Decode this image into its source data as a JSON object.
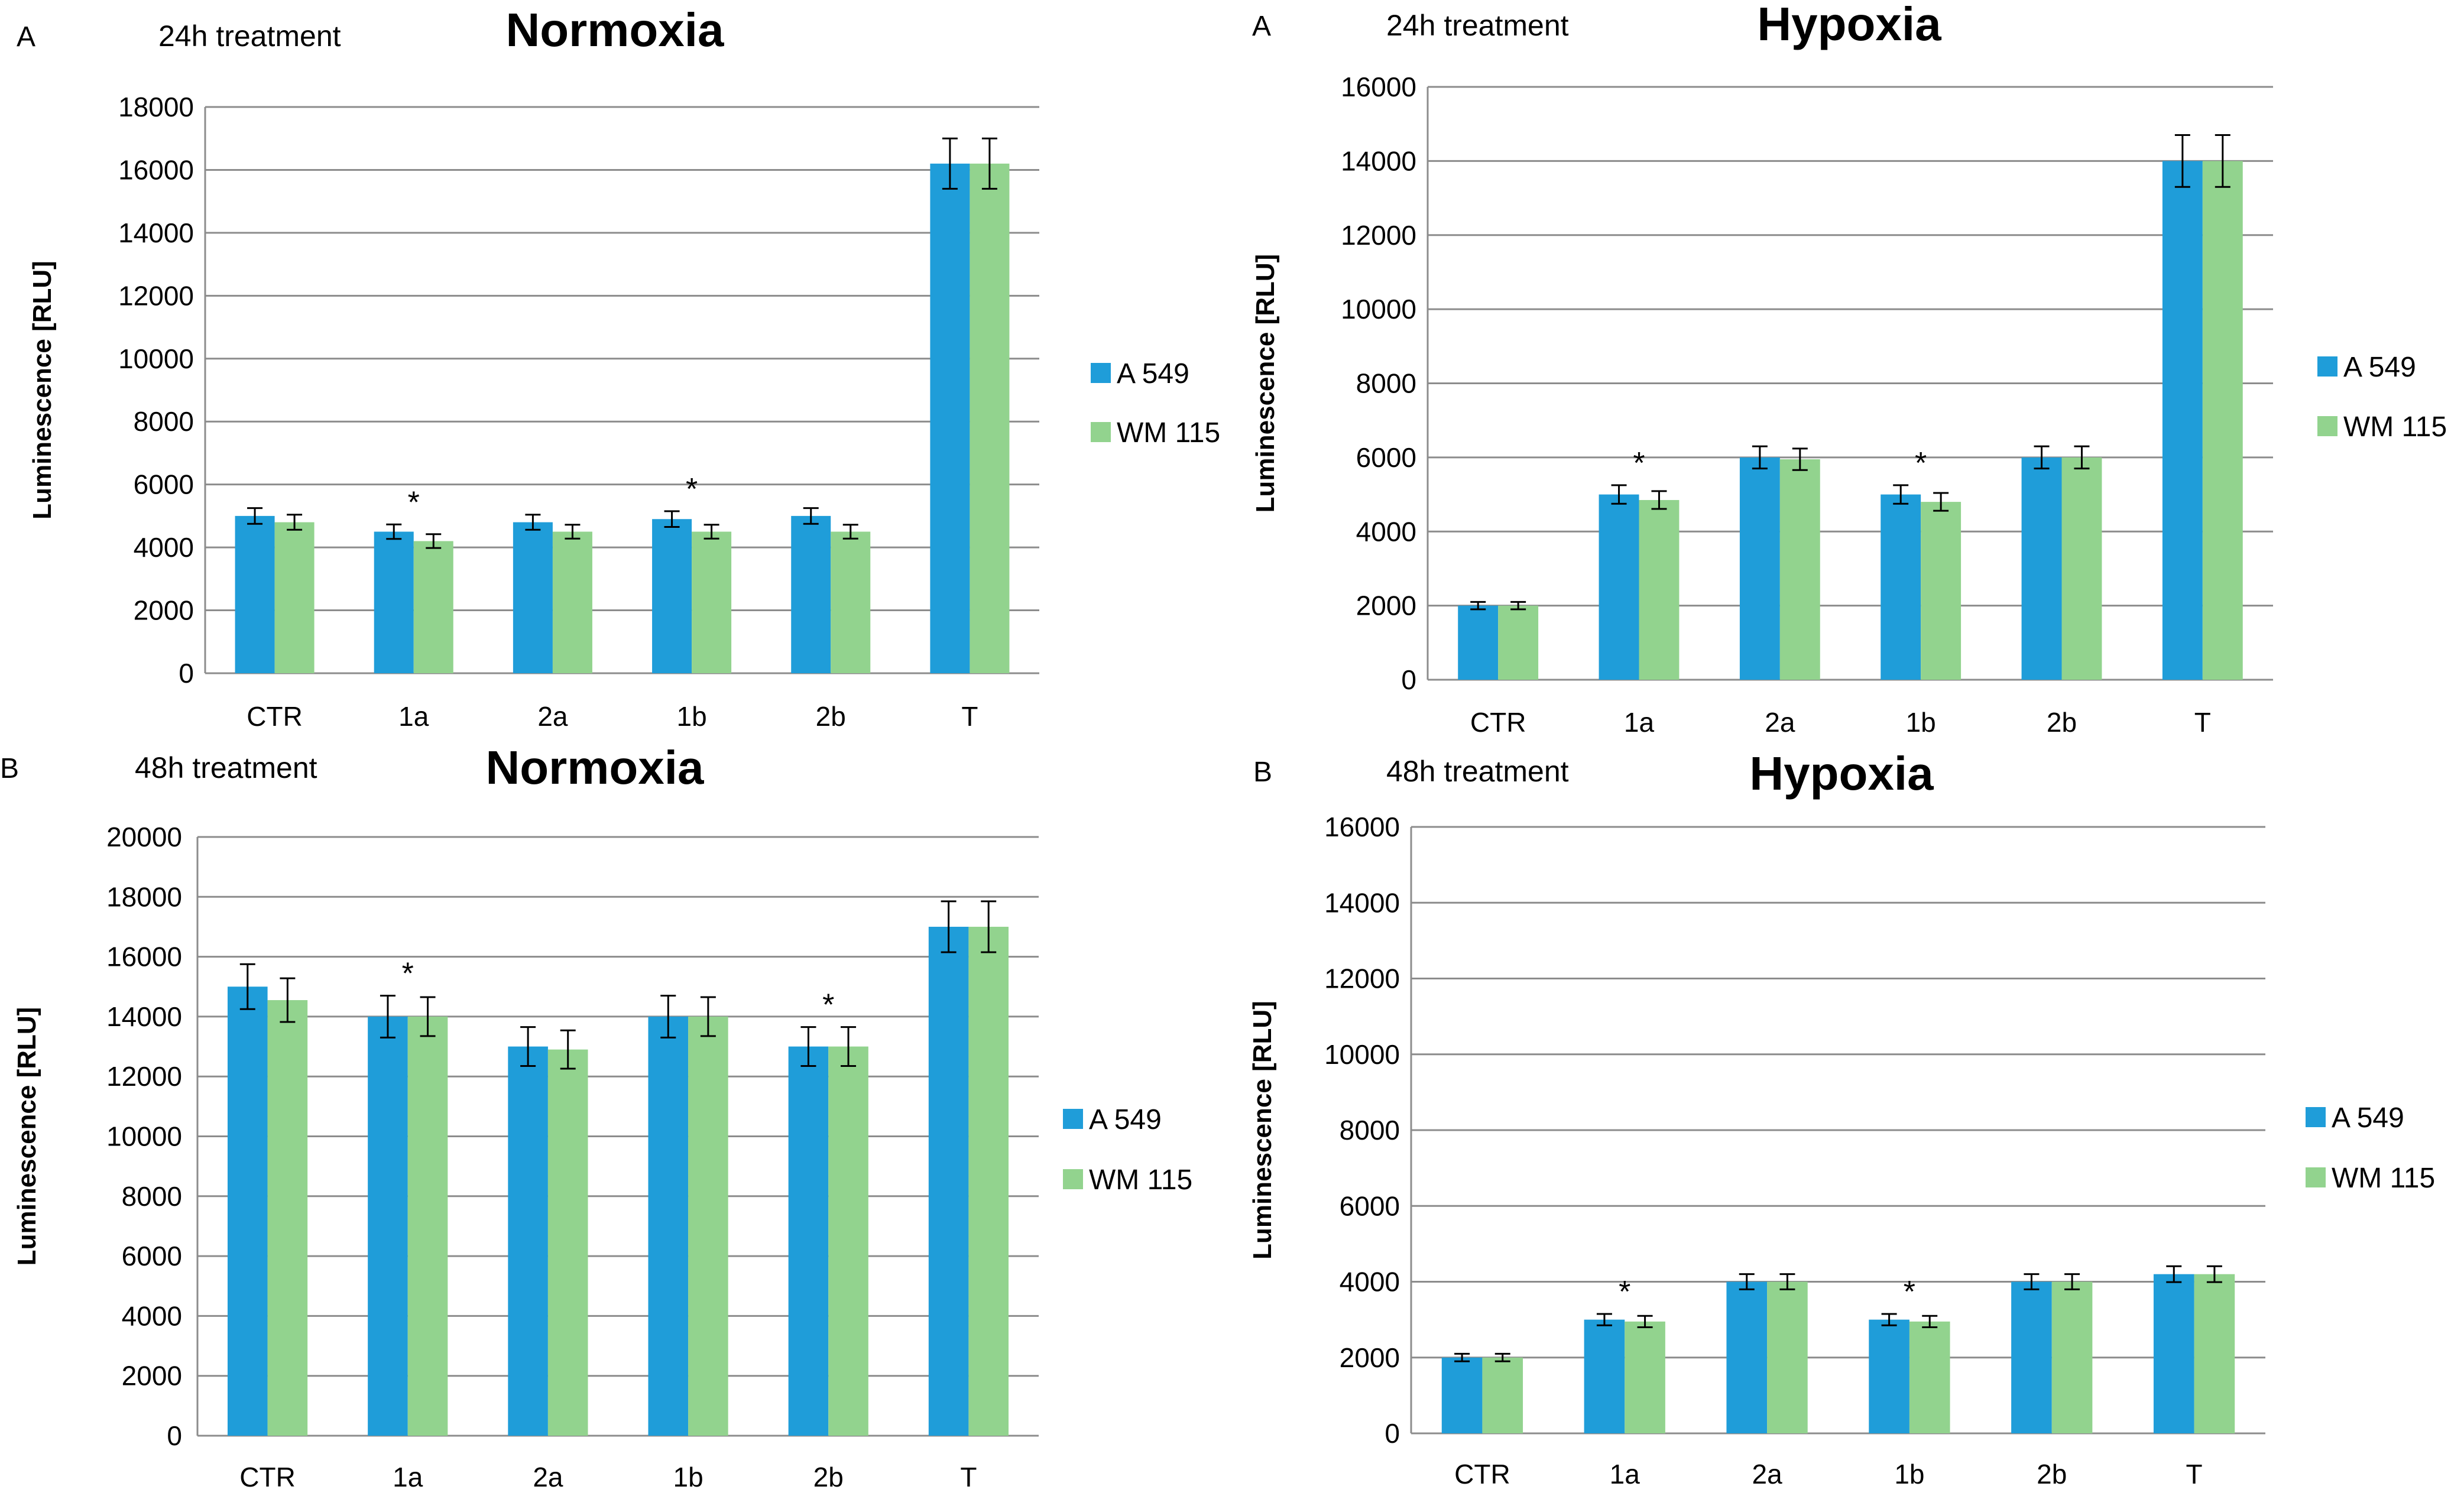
{
  "colors": {
    "a549": "#1f9dd9",
    "wm115": "#92d38e",
    "grid": "#8c8c8c",
    "error": "#000000"
  },
  "legend": [
    "A 549",
    "WM 115"
  ],
  "chart_data": [
    {
      "id": "n24",
      "type": "bar",
      "panel": "A",
      "treatment": "24h treatment",
      "title": "Normoxia",
      "ylabel": "Luminescence [RLU]",
      "ylim": [
        0,
        18000
      ],
      "ytick_step": 2000,
      "ytick_labels": [
        "0",
        "2000",
        "4000",
        "6000",
        "8000",
        "10000",
        "12000",
        "14000",
        "16000",
        "18000"
      ],
      "categories": [
        "CTR",
        "1a",
        "2a",
        "1b",
        "2b",
        "T"
      ],
      "series": [
        {
          "name": "A 549",
          "values": [
            5000,
            4500,
            4800,
            4900,
            5000,
            16200
          ],
          "errors": [
            250,
            230,
            240,
            250,
            250,
            800
          ]
        },
        {
          "name": "WM 115",
          "values": [
            4800,
            4200,
            4500,
            4500,
            4500,
            16200
          ],
          "errors": [
            240,
            220,
            220,
            220,
            220,
            800
          ]
        }
      ],
      "significance": [
        {
          "category": "1a",
          "label": "*"
        },
        {
          "category": "1b",
          "label": "*"
        }
      ]
    },
    {
      "id": "h24",
      "type": "bar",
      "panel": "A",
      "treatment": "24h treatment",
      "title": "Hypoxia",
      "ylabel": "Luminescence [RLU]",
      "ylim": [
        0,
        16000
      ],
      "ytick_step": 2000,
      "ytick_labels": [
        "0",
        "2000",
        "4000",
        "6000",
        "8000",
        "10000",
        "12000",
        "14000",
        "16000"
      ],
      "categories": [
        "CTR",
        "1a",
        "2a",
        "1b",
        "2b",
        "T"
      ],
      "series": [
        {
          "name": "A 549",
          "values": [
            2000,
            5000,
            6000,
            5000,
            6000,
            14000
          ],
          "errors": [
            100,
            250,
            300,
            250,
            300,
            700
          ]
        },
        {
          "name": "WM 115",
          "values": [
            2000,
            4850,
            5950,
            4800,
            6000,
            14000
          ],
          "errors": [
            100,
            240,
            290,
            240,
            300,
            700
          ]
        }
      ],
      "significance": [
        {
          "category": "1a",
          "label": "*"
        },
        {
          "category": "1b",
          "label": "*"
        }
      ]
    },
    {
      "id": "n48",
      "type": "bar",
      "panel": "B",
      "treatment": "48h treatment",
      "title": "Normoxia",
      "ylabel": "Luminescence [RLU]",
      "ylim": [
        0,
        20000
      ],
      "ytick_step": 2000,
      "ytick_labels": [
        "0",
        "2000",
        "4000",
        "6000",
        "8000",
        "10000",
        "12000",
        "14000",
        "16000",
        "18000",
        "20000"
      ],
      "categories": [
        "CTR",
        "1a",
        "2a",
        "1b",
        "2b",
        "T"
      ],
      "series": [
        {
          "name": "A 549",
          "values": [
            15000,
            14000,
            13000,
            14000,
            13000,
            17000
          ],
          "errors": [
            750,
            700,
            650,
            700,
            650,
            850
          ]
        },
        {
          "name": "WM 115",
          "values": [
            14550,
            14000,
            12900,
            14000,
            13000,
            17000
          ],
          "errors": [
            730,
            650,
            640,
            650,
            650,
            850
          ]
        }
      ],
      "significance": [
        {
          "category": "1a",
          "label": "*"
        },
        {
          "category": "2b",
          "label": "*"
        }
      ]
    },
    {
      "id": "h48",
      "type": "bar",
      "panel": "B",
      "treatment": "48h treatment",
      "title": "Hypoxia",
      "ylabel": "Luminescence [RLU]",
      "ylim": [
        0,
        16000
      ],
      "ytick_step": 2000,
      "ytick_labels": [
        "0",
        "2000",
        "4000",
        "6000",
        "8000",
        "10000",
        "12000",
        "14000",
        "16000"
      ],
      "categories": [
        "CTR",
        "1a",
        "2a",
        "1b",
        "2b",
        "T"
      ],
      "series": [
        {
          "name": "A 549",
          "values": [
            2000,
            3000,
            4000,
            3000,
            4000,
            4200
          ],
          "errors": [
            100,
            150,
            200,
            150,
            200,
            210
          ]
        },
        {
          "name": "WM 115",
          "values": [
            2000,
            2950,
            4000,
            2950,
            4000,
            4200
          ],
          "errors": [
            100,
            150,
            200,
            150,
            200,
            210
          ]
        }
      ],
      "significance": [
        {
          "category": "1a",
          "label": "*"
        },
        {
          "category": "1b",
          "label": "*"
        }
      ]
    }
  ]
}
